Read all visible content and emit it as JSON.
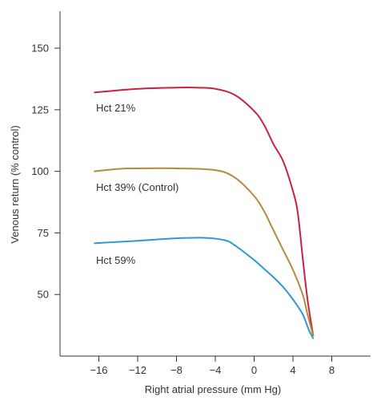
{
  "chart_data": {
    "type": "line",
    "title": "",
    "xlabel": "Right atrial pressure (mm Hg)",
    "ylabel": "Venous return (% control)",
    "xlim": [
      -20,
      12
    ],
    "ylim": [
      25,
      165
    ],
    "x_ticks": [
      -16,
      -12,
      -8,
      -4,
      0,
      4,
      8
    ],
    "x_tick_labels": [
      "−16",
      "−12",
      "−8",
      "−4",
      "0",
      "4",
      "8"
    ],
    "y_ticks": [
      50,
      75,
      100,
      125,
      150
    ],
    "y_tick_labels": [
      "50",
      "75",
      "100",
      "125",
      "150"
    ],
    "grid": false,
    "legend": "none",
    "series": [
      {
        "name": "Hct 21%",
        "color": "#c8223f",
        "x": [
          -16.5,
          -12,
          -8,
          -6,
          -4,
          -2,
          0,
          1,
          2,
          3,
          4,
          4.5,
          5,
          5.5,
          6.1
        ],
        "y": [
          132,
          133.5,
          134,
          134,
          133.5,
          131,
          124.5,
          119,
          111,
          104,
          92,
          83,
          65,
          48,
          33
        ]
      },
      {
        "name": "Hct 39% (Control)",
        "color": "#b48a3c",
        "x": [
          -16.5,
          -14,
          -12,
          -8,
          -4,
          -2,
          0,
          1,
          2,
          3,
          4,
          5,
          5.5,
          6.1
        ],
        "y": [
          100,
          101,
          101.2,
          101.2,
          100.5,
          97.5,
          90,
          84,
          76,
          68,
          60,
          50,
          42,
          33
        ]
      },
      {
        "name": "Hct 59%",
        "color": "#2d9ad2",
        "x": [
          -16.5,
          -12,
          -8,
          -5,
          -3,
          -2,
          0,
          1,
          2,
          3,
          4,
          5,
          5.6,
          6.1
        ],
        "y": [
          70.8,
          71.8,
          72.8,
          73,
          72,
          70,
          64,
          60.5,
          57,
          53,
          48,
          42,
          36,
          32
        ]
      }
    ]
  }
}
